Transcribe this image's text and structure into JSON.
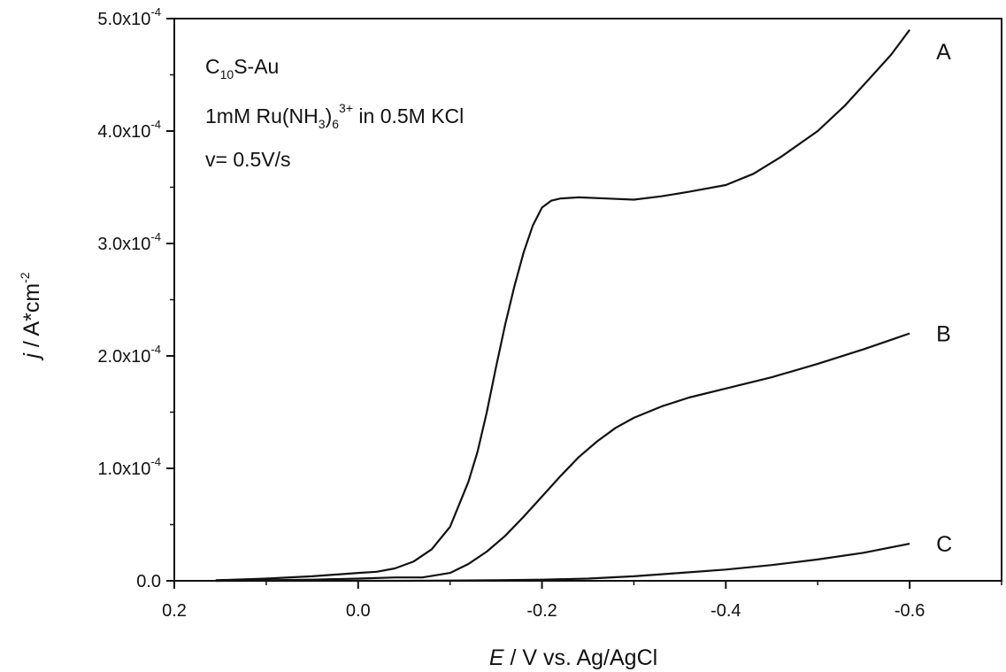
{
  "chart_data": {
    "type": "line",
    "xlabel": {
      "italic": "E",
      "rest": " / V vs. Ag/AgCl"
    },
    "ylabel": {
      "italic": "j",
      "rest": " / A*cm",
      "sup": "-2"
    },
    "xlim": [
      0.2,
      -0.7
    ],
    "ylim": [
      0,
      0.0005
    ],
    "x_ticks": [
      {
        "value": 0.2,
        "label": "0.2"
      },
      {
        "value": 0.0,
        "label": "0.0"
      },
      {
        "value": -0.2,
        "label": "-0.2"
      },
      {
        "value": -0.4,
        "label": "-0.4"
      },
      {
        "value": -0.6,
        "label": "-0.6"
      }
    ],
    "y_ticks": [
      {
        "value": 0,
        "label": "0.0"
      },
      {
        "value": 0.0001,
        "label": "1.0x10",
        "exp": "-4"
      },
      {
        "value": 0.0002,
        "label": "2.0x10",
        "exp": "-4"
      },
      {
        "value": 0.0003,
        "label": "3.0x10",
        "exp": "-4"
      },
      {
        "value": 0.0004,
        "label": "4.0x10",
        "exp": "-4"
      },
      {
        "value": 0.0005,
        "label": "5.0x10",
        "exp": "-4"
      }
    ],
    "annotations": {
      "line1": {
        "main": "C",
        "sub": "10",
        "rest": "S-Au"
      },
      "line2": {
        "pre": "1mM Ru(NH",
        "sub1": "3",
        "mid": ")",
        "sub2": "6",
        "sup": "3+",
        "post": " in 0.5M KCl"
      },
      "line3": "v= 0.5V/s"
    },
    "series": [
      {
        "name": "A",
        "x": [
          0.155,
          0.1,
          0.05,
          0.0,
          -0.02,
          -0.04,
          -0.06,
          -0.08,
          -0.1,
          -0.12,
          -0.13,
          -0.14,
          -0.15,
          -0.16,
          -0.17,
          -0.18,
          -0.19,
          -0.2,
          -0.21,
          -0.22,
          -0.24,
          -0.27,
          -0.3,
          -0.33,
          -0.36,
          -0.4,
          -0.43,
          -0.46,
          -0.5,
          -0.53,
          -0.56,
          -0.58,
          -0.6
        ],
        "y": [
          5e-07,
          2e-06,
          4e-06,
          7e-06,
          8e-06,
          1.1e-05,
          1.7e-05,
          2.8e-05,
          4.8e-05,
          8.8e-05,
          0.000115,
          0.00015,
          0.00019,
          0.000228,
          0.000262,
          0.000292,
          0.000316,
          0.000332,
          0.000338,
          0.00034,
          0.000341,
          0.00034,
          0.000339,
          0.000342,
          0.000346,
          0.000352,
          0.000362,
          0.000377,
          0.0004,
          0.000423,
          0.00045,
          0.000468,
          0.00049
        ]
      },
      {
        "name": "B",
        "x": [
          0.155,
          0.1,
          0.05,
          0.0,
          -0.04,
          -0.07,
          -0.1,
          -0.12,
          -0.14,
          -0.16,
          -0.18,
          -0.2,
          -0.22,
          -0.24,
          -0.26,
          -0.28,
          -0.3,
          -0.33,
          -0.36,
          -0.4,
          -0.45,
          -0.5,
          -0.55,
          -0.6
        ],
        "y": [
          0.0,
          5e-07,
          1e-06,
          2e-06,
          3e-06,
          3e-06,
          7e-06,
          1.5e-05,
          2.6e-05,
          4e-05,
          5.7e-05,
          7.5e-05,
          9.3e-05,
          0.00011,
          0.000124,
          0.000136,
          0.000145,
          0.000155,
          0.000163,
          0.000171,
          0.000181,
          0.000193,
          0.000206,
          0.00022
        ]
      },
      {
        "name": "C",
        "x": [
          0.155,
          0.1,
          0.05,
          0.0,
          -0.05,
          -0.1,
          -0.15,
          -0.2,
          -0.25,
          -0.3,
          -0.35,
          -0.4,
          -0.45,
          -0.5,
          -0.55,
          -0.6
        ],
        "y": [
          0.0,
          0.0,
          0.0,
          0.0,
          0.0,
          2e-07,
          5e-07,
          1e-06,
          2e-06,
          4e-06,
          7e-06,
          1e-05,
          1.4e-05,
          1.9e-05,
          2.5e-05,
          3.3e-05
        ]
      }
    ]
  }
}
